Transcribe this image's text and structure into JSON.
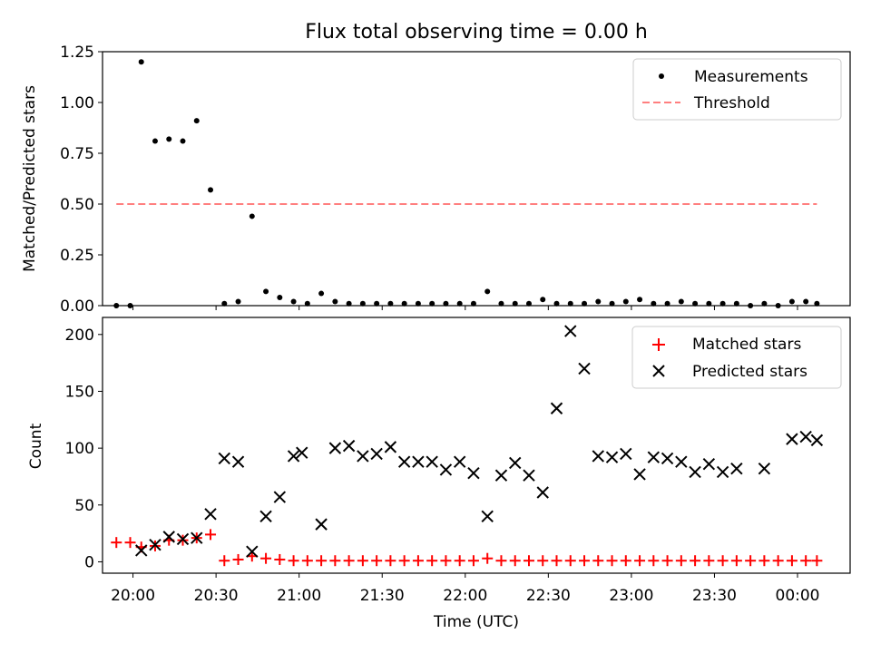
{
  "chart_data": [
    {
      "type": "scatter",
      "title": "Flux total observing time = 0.00 h",
      "xlabel": "",
      "ylabel": "Matched/Predicted stars",
      "x_ticks": [
        "20:00",
        "20:30",
        "21:00",
        "21:30",
        "22:00",
        "22:30",
        "23:00",
        "23:30",
        "00:00"
      ],
      "xlim": [
        "19:49",
        "00:19"
      ],
      "ylim": [
        0,
        1.25
      ],
      "y_ticks": [
        "0.00",
        "0.25",
        "0.50",
        "0.75",
        "1.00",
        "1.25"
      ],
      "legend_position": "top-right",
      "series": [
        {
          "name": "Measurements",
          "marker": "dot",
          "color": "#000000",
          "x": [
            "19:54",
            "19:59",
            "20:03",
            "20:08",
            "20:13",
            "20:18",
            "20:23",
            "20:28",
            "20:33",
            "20:38",
            "20:43",
            "20:48",
            "20:53",
            "20:58",
            "21:03",
            "21:08",
            "21:13",
            "21:18",
            "21:23",
            "21:28",
            "21:33",
            "21:38",
            "21:43",
            "21:48",
            "21:53",
            "21:58",
            "22:03",
            "22:08",
            "22:13",
            "22:18",
            "22:23",
            "22:28",
            "22:33",
            "22:38",
            "22:43",
            "22:48",
            "22:53",
            "22:58",
            "23:03",
            "23:08",
            "23:13",
            "23:18",
            "23:23",
            "23:28",
            "23:33",
            "23:38",
            "23:43",
            "23:48",
            "23:53",
            "23:58",
            "00:03",
            "00:07"
          ],
          "y": [
            0.0,
            0.0,
            1.2,
            0.81,
            0.82,
            0.81,
            0.91,
            0.57,
            0.01,
            0.02,
            0.44,
            0.07,
            0.04,
            0.02,
            0.01,
            0.06,
            0.02,
            0.01,
            0.01,
            0.01,
            0.01,
            0.01,
            0.01,
            0.01,
            0.01,
            0.01,
            0.01,
            0.07,
            0.01,
            0.01,
            0.01,
            0.03,
            0.01,
            0.01,
            0.01,
            0.02,
            0.01,
            0.02,
            0.03,
            0.01,
            0.01,
            0.02,
            0.01,
            0.01,
            0.01,
            0.01,
            0.0,
            0.01,
            0.0,
            0.02,
            0.02,
            0.01
          ]
        },
        {
          "name": "Threshold",
          "style": "dashed",
          "color": "#ff7f7f",
          "x": [
            "19:54",
            "00:07"
          ],
          "y": [
            0.5,
            0.5
          ]
        }
      ]
    },
    {
      "type": "scatter",
      "title": "",
      "xlabel": "Time (UTC)",
      "ylabel": "Count",
      "x_ticks": [
        "20:00",
        "20:30",
        "21:00",
        "21:30",
        "22:00",
        "22:30",
        "23:00",
        "23:30",
        "00:00"
      ],
      "xlim": [
        "19:49",
        "00:19"
      ],
      "ylim": [
        -10,
        215
      ],
      "y_ticks": [
        "0",
        "50",
        "100",
        "150",
        "200"
      ],
      "legend_position": "top-right",
      "series": [
        {
          "name": "Matched stars",
          "marker": "plus",
          "color": "#ff0000",
          "x": [
            "19:54",
            "19:59",
            "20:03",
            "20:08",
            "20:13",
            "20:18",
            "20:23",
            "20:28",
            "20:33",
            "20:38",
            "20:43",
            "20:48",
            "20:53",
            "20:58",
            "21:03",
            "21:08",
            "21:13",
            "21:18",
            "21:23",
            "21:28",
            "21:33",
            "21:38",
            "21:43",
            "21:48",
            "21:53",
            "21:58",
            "22:03",
            "22:08",
            "22:13",
            "22:18",
            "22:23",
            "22:28",
            "22:33",
            "22:38",
            "22:43",
            "22:48",
            "22:53",
            "22:58",
            "23:03",
            "23:08",
            "23:13",
            "23:18",
            "23:23",
            "23:28",
            "23:33",
            "23:38",
            "23:43",
            "23:48",
            "23:53",
            "23:58",
            "00:03",
            "00:07"
          ],
          "y": [
            17,
            17,
            13,
            14,
            19,
            19,
            21,
            24,
            1,
            2,
            5,
            3,
            2,
            1,
            1,
            1,
            1,
            1,
            1,
            1,
            1,
            1,
            1,
            1,
            1,
            1,
            1,
            3,
            1,
            1,
            1,
            1,
            1,
            1,
            1,
            1,
            1,
            1,
            1,
            1,
            1,
            1,
            1,
            1,
            1,
            1,
            1,
            1,
            1,
            1,
            1,
            1
          ]
        },
        {
          "name": "Predicted stars",
          "marker": "x",
          "color": "#000000",
          "x": [
            "20:03",
            "20:08",
            "20:13",
            "20:18",
            "20:23",
            "20:28",
            "20:33",
            "20:38",
            "20:43",
            "20:48",
            "20:53",
            "20:58",
            "21:01",
            "21:08",
            "21:13",
            "21:18",
            "21:23",
            "21:28",
            "21:33",
            "21:38",
            "21:43",
            "21:48",
            "21:53",
            "21:58",
            "22:03",
            "22:08",
            "22:13",
            "22:18",
            "22:23",
            "22:28",
            "22:33",
            "22:38",
            "22:43",
            "22:48",
            "22:53",
            "22:58",
            "23:03",
            "23:08",
            "23:13",
            "23:18",
            "23:23",
            "23:28",
            "23:33",
            "23:38",
            "23:48",
            "23:58",
            "00:03",
            "00:07"
          ],
          "y": [
            10,
            15,
            22,
            20,
            21,
            42,
            91,
            88,
            9,
            40,
            57,
            93,
            96,
            33,
            100,
            102,
            93,
            95,
            101,
            88,
            88,
            88,
            81,
            88,
            78,
            40,
            76,
            87,
            76,
            61,
            135,
            203,
            170,
            93,
            92,
            95,
            77,
            92,
            91,
            88,
            79,
            86,
            79,
            82,
            82,
            108,
            110,
            107
          ]
        }
      ]
    }
  ]
}
